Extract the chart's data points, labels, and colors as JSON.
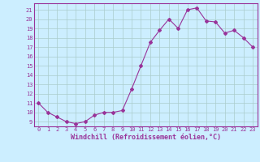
{
  "x": [
    0,
    1,
    2,
    3,
    4,
    5,
    6,
    7,
    8,
    9,
    10,
    11,
    12,
    13,
    14,
    15,
    16,
    17,
    18,
    19,
    20,
    21,
    22,
    23
  ],
  "y": [
    11,
    10,
    9.5,
    9,
    8.8,
    9,
    9.7,
    10,
    10,
    10.2,
    12.5,
    15,
    17.5,
    18.8,
    20,
    19,
    21,
    21.2,
    19.8,
    19.7,
    18.5,
    18.8,
    18,
    17
  ],
  "line_color": "#993399",
  "marker": "D",
  "marker_size": 2,
  "bg_color": "#cceeff",
  "grid_color": "#aacccc",
  "xlabel": "Windchill (Refroidissement éolien,°C)",
  "ylim": [
    8.5,
    21.7
  ],
  "xlim": [
    -0.5,
    23.5
  ],
  "yticks": [
    9,
    10,
    11,
    12,
    13,
    14,
    15,
    16,
    17,
    18,
    19,
    20,
    21
  ],
  "xticks": [
    0,
    1,
    2,
    3,
    4,
    5,
    6,
    7,
    8,
    9,
    10,
    11,
    12,
    13,
    14,
    15,
    16,
    17,
    18,
    19,
    20,
    21,
    22,
    23
  ],
  "tick_fontsize": 5,
  "xlabel_fontsize": 6
}
